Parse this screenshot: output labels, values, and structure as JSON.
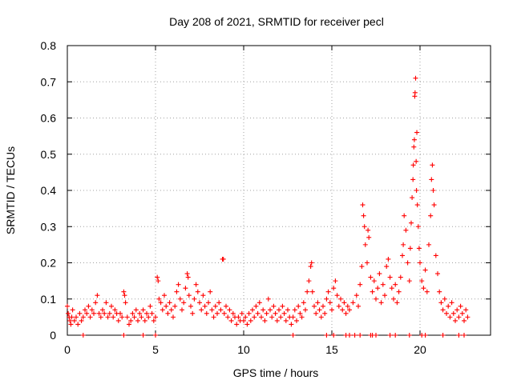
{
  "chart_data": {
    "type": "scatter",
    "title": "Day 208 of 2021, SRMTID for receiver pecl",
    "xlabel": "GPS time / hours",
    "ylabel": "SRMTID / TECUs",
    "xlim": [
      0,
      24
    ],
    "ylim": [
      0,
      0.8
    ],
    "xticks": [
      0,
      5,
      10,
      15,
      20
    ],
    "xtick_labels": [
      "0",
      "5",
      "10",
      "15",
      "20"
    ],
    "yticks": [
      0,
      0.1,
      0.2,
      0.3,
      0.4,
      0.5,
      0.6,
      0.7,
      0.8
    ],
    "ytick_labels": [
      "0",
      "0.1",
      "0.2",
      "0.3",
      "0.4",
      "0.5",
      "0.6",
      "0.7",
      "0.8"
    ],
    "grid": true,
    "marker": "plus",
    "color": "#ff0000",
    "series": [
      {
        "name": "SRMTID",
        "points": [
          [
            0.0,
            0.08
          ],
          [
            0.05,
            0.06
          ],
          [
            0.1,
            0.05
          ],
          [
            0.15,
            0.04
          ],
          [
            0.2,
            0.03
          ],
          [
            0.25,
            0.05
          ],
          [
            0.3,
            0.07
          ],
          [
            0.4,
            0.04
          ],
          [
            0.5,
            0.05
          ],
          [
            0.6,
            0.03
          ],
          [
            0.7,
            0.06
          ],
          [
            0.8,
            0.04
          ],
          [
            0.9,
            0.05
          ],
          [
            1.0,
            0.07
          ],
          [
            1.1,
            0.06
          ],
          [
            1.2,
            0.08
          ],
          [
            1.3,
            0.05
          ],
          [
            1.4,
            0.07
          ],
          [
            1.5,
            0.06
          ],
          [
            1.6,
            0.09
          ],
          [
            1.7,
            0.11
          ],
          [
            1.8,
            0.06
          ],
          [
            1.9,
            0.05
          ],
          [
            2.0,
            0.07
          ],
          [
            2.1,
            0.06
          ],
          [
            2.2,
            0.09
          ],
          [
            2.3,
            0.05
          ],
          [
            2.4,
            0.06
          ],
          [
            2.5,
            0.08
          ],
          [
            2.6,
            0.05
          ],
          [
            2.7,
            0.07
          ],
          [
            2.8,
            0.06
          ],
          [
            2.9,
            0.04
          ],
          [
            3.0,
            0.06
          ],
          [
            3.1,
            0.05
          ],
          [
            3.2,
            0.12
          ],
          [
            3.25,
            0.11
          ],
          [
            3.3,
            0.09
          ],
          [
            3.4,
            0.05
          ],
          [
            3.5,
            0.03
          ],
          [
            3.6,
            0.04
          ],
          [
            3.7,
            0.06
          ],
          [
            3.8,
            0.05
          ],
          [
            3.9,
            0.07
          ],
          [
            4.0,
            0.04
          ],
          [
            4.1,
            0.06
          ],
          [
            4.2,
            0.05
          ],
          [
            4.3,
            0.07
          ],
          [
            4.4,
            0.04
          ],
          [
            4.5,
            0.06
          ],
          [
            4.6,
            0.05
          ],
          [
            4.7,
            0.08
          ],
          [
            4.8,
            0.06
          ],
          [
            4.9,
            0.04
          ],
          [
            5.0,
            0.05
          ],
          [
            5.1,
            0.16
          ],
          [
            5.15,
            0.15
          ],
          [
            5.2,
            0.1
          ],
          [
            5.3,
            0.09
          ],
          [
            5.4,
            0.07
          ],
          [
            5.5,
            0.11
          ],
          [
            5.6,
            0.08
          ],
          [
            5.7,
            0.06
          ],
          [
            5.8,
            0.09
          ],
          [
            5.9,
            0.07
          ],
          [
            6.0,
            0.05
          ],
          [
            6.1,
            0.08
          ],
          [
            6.2,
            0.12
          ],
          [
            6.3,
            0.14
          ],
          [
            6.4,
            0.1
          ],
          [
            6.5,
            0.07
          ],
          [
            6.6,
            0.09
          ],
          [
            6.7,
            0.13
          ],
          [
            6.8,
            0.17
          ],
          [
            6.85,
            0.16
          ],
          [
            6.9,
            0.11
          ],
          [
            7.0,
            0.08
          ],
          [
            7.1,
            0.06
          ],
          [
            7.2,
            0.1
          ],
          [
            7.3,
            0.14
          ],
          [
            7.4,
            0.12
          ],
          [
            7.5,
            0.09
          ],
          [
            7.6,
            0.07
          ],
          [
            7.7,
            0.11
          ],
          [
            7.8,
            0.08
          ],
          [
            7.9,
            0.06
          ],
          [
            8.0,
            0.09
          ],
          [
            8.1,
            0.12
          ],
          [
            8.2,
            0.07
          ],
          [
            8.3,
            0.05
          ],
          [
            8.4,
            0.08
          ],
          [
            8.5,
            0.06
          ],
          [
            8.6,
            0.09
          ],
          [
            8.7,
            0.07
          ],
          [
            8.8,
            0.21
          ],
          [
            8.85,
            0.21
          ],
          [
            8.9,
            0.06
          ],
          [
            9.0,
            0.08
          ],
          [
            9.1,
            0.05
          ],
          [
            9.2,
            0.07
          ],
          [
            9.3,
            0.04
          ],
          [
            9.4,
            0.06
          ],
          [
            9.5,
            0.05
          ],
          [
            9.6,
            0.03
          ],
          [
            9.7,
            0.05
          ],
          [
            9.8,
            0.04
          ],
          [
            9.9,
            0.06
          ],
          [
            10.0,
            0.04
          ],
          [
            10.1,
            0.05
          ],
          [
            10.2,
            0.03
          ],
          [
            10.3,
            0.06
          ],
          [
            10.4,
            0.04
          ],
          [
            10.5,
            0.07
          ],
          [
            10.6,
            0.05
          ],
          [
            10.7,
            0.08
          ],
          [
            10.8,
            0.06
          ],
          [
            10.9,
            0.09
          ],
          [
            11.0,
            0.05
          ],
          [
            11.1,
            0.07
          ],
          [
            11.2,
            0.04
          ],
          [
            11.3,
            0.06
          ],
          [
            11.4,
            0.1
          ],
          [
            11.5,
            0.07
          ],
          [
            11.6,
            0.05
          ],
          [
            11.7,
            0.08
          ],
          [
            11.8,
            0.06
          ],
          [
            11.9,
            0.04
          ],
          [
            12.0,
            0.07
          ],
          [
            12.1,
            0.05
          ],
          [
            12.2,
            0.08
          ],
          [
            12.3,
            0.06
          ],
          [
            12.4,
            0.04
          ],
          [
            12.5,
            0.07
          ],
          [
            12.6,
            0.05
          ],
          [
            12.7,
            0.03
          ],
          [
            12.8,
            0.05
          ],
          [
            12.9,
            0.07
          ],
          [
            13.0,
            0.04
          ],
          [
            13.1,
            0.08
          ],
          [
            13.2,
            0.06
          ],
          [
            13.3,
            0.05
          ],
          [
            13.4,
            0.09
          ],
          [
            13.5,
            0.07
          ],
          [
            13.6,
            0.12
          ],
          [
            13.7,
            0.15
          ],
          [
            13.8,
            0.19
          ],
          [
            13.85,
            0.2
          ],
          [
            13.9,
            0.12
          ],
          [
            14.0,
            0.08
          ],
          [
            14.1,
            0.06
          ],
          [
            14.2,
            0.09
          ],
          [
            14.3,
            0.07
          ],
          [
            14.4,
            0.05
          ],
          [
            14.5,
            0.08
          ],
          [
            14.6,
            0.06
          ],
          [
            14.7,
            0.1
          ],
          [
            14.8,
            0.12
          ],
          [
            14.9,
            0.09
          ],
          [
            15.0,
            0.07
          ],
          [
            15.1,
            0.13
          ],
          [
            15.2,
            0.15
          ],
          [
            15.3,
            0.11
          ],
          [
            15.4,
            0.08
          ],
          [
            15.5,
            0.1
          ],
          [
            15.6,
            0.07
          ],
          [
            15.7,
            0.09
          ],
          [
            15.8,
            0.06
          ],
          [
            15.9,
            0.08
          ],
          [
            16.0,
            0.07
          ],
          [
            16.2,
            0.09
          ],
          [
            16.4,
            0.11
          ],
          [
            16.5,
            0.08
          ],
          [
            16.6,
            0.14
          ],
          [
            16.7,
            0.19
          ],
          [
            16.75,
            0.36
          ],
          [
            16.8,
            0.33
          ],
          [
            16.85,
            0.3
          ],
          [
            16.9,
            0.25
          ],
          [
            17.0,
            0.2
          ],
          [
            17.05,
            0.29
          ],
          [
            17.1,
            0.27
          ],
          [
            17.2,
            0.16
          ],
          [
            17.3,
            0.12
          ],
          [
            17.4,
            0.15
          ],
          [
            17.5,
            0.1
          ],
          [
            17.6,
            0.13
          ],
          [
            17.7,
            0.17
          ],
          [
            17.8,
            0.09
          ],
          [
            17.9,
            0.14
          ],
          [
            18.0,
            0.11
          ],
          [
            18.1,
            0.19
          ],
          [
            18.2,
            0.21
          ],
          [
            18.3,
            0.16
          ],
          [
            18.4,
            0.13
          ],
          [
            18.5,
            0.1
          ],
          [
            18.6,
            0.14
          ],
          [
            18.7,
            0.09
          ],
          [
            18.8,
            0.12
          ],
          [
            18.9,
            0.16
          ],
          [
            19.0,
            0.22
          ],
          [
            19.05,
            0.25
          ],
          [
            19.1,
            0.33
          ],
          [
            19.2,
            0.29
          ],
          [
            19.3,
            0.2
          ],
          [
            19.4,
            0.15
          ],
          [
            19.45,
            0.24
          ],
          [
            19.5,
            0.31
          ],
          [
            19.55,
            0.38
          ],
          [
            19.6,
            0.43
          ],
          [
            19.62,
            0.47
          ],
          [
            19.65,
            0.52
          ],
          [
            19.68,
            0.54
          ],
          [
            19.7,
            0.66
          ],
          [
            19.72,
            0.67
          ],
          [
            19.75,
            0.71
          ],
          [
            19.78,
            0.48
          ],
          [
            19.8,
            0.4
          ],
          [
            19.82,
            0.56
          ],
          [
            19.85,
            0.36
          ],
          [
            19.9,
            0.3
          ],
          [
            19.95,
            0.24
          ],
          [
            20.0,
            0.2
          ],
          [
            20.1,
            0.15
          ],
          [
            20.2,
            0.13
          ],
          [
            20.3,
            0.18
          ],
          [
            20.4,
            0.12
          ],
          [
            20.5,
            0.25
          ],
          [
            20.6,
            0.33
          ],
          [
            20.65,
            0.43
          ],
          [
            20.7,
            0.47
          ],
          [
            20.75,
            0.4
          ],
          [
            20.8,
            0.36
          ],
          [
            20.9,
            0.22
          ],
          [
            21.0,
            0.17
          ],
          [
            21.1,
            0.12
          ],
          [
            21.2,
            0.09
          ],
          [
            21.3,
            0.07
          ],
          [
            21.4,
            0.1
          ],
          [
            21.5,
            0.06
          ],
          [
            21.6,
            0.08
          ],
          [
            21.7,
            0.05
          ],
          [
            21.8,
            0.09
          ],
          [
            21.9,
            0.06
          ],
          [
            22.0,
            0.04
          ],
          [
            22.1,
            0.07
          ],
          [
            22.2,
            0.05
          ],
          [
            22.3,
            0.08
          ],
          [
            22.4,
            0.06
          ],
          [
            22.5,
            0.04
          ],
          [
            22.6,
            0.07
          ],
          [
            22.7,
            0.05
          ],
          [
            0.9,
            0.0
          ],
          [
            3.2,
            0.0
          ],
          [
            4.3,
            0.0
          ],
          [
            5.0,
            0.0
          ],
          [
            12.8,
            0.0
          ],
          [
            14.7,
            0.0
          ],
          [
            15.1,
            0.0
          ],
          [
            15.8,
            0.0
          ],
          [
            16.0,
            0.0
          ],
          [
            16.3,
            0.0
          ],
          [
            16.6,
            0.0
          ],
          [
            17.2,
            0.0
          ],
          [
            17.3,
            0.0
          ],
          [
            17.5,
            0.0
          ],
          [
            18.3,
            0.0
          ],
          [
            18.6,
            0.0
          ],
          [
            19.4,
            0.0
          ],
          [
            20.1,
            0.0
          ],
          [
            20.3,
            0.0
          ],
          [
            21.3,
            0.0
          ],
          [
            22.2,
            0.0
          ],
          [
            22.5,
            0.0
          ]
        ]
      }
    ]
  }
}
